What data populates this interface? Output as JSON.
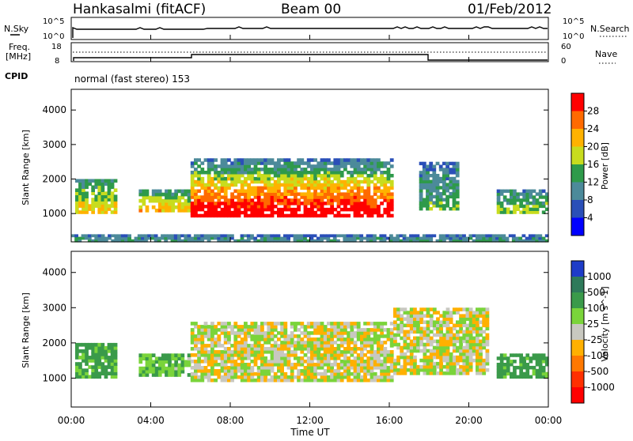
{
  "header": {
    "site": "Hankasalmi (fitACF)",
    "beam": "Beam 00",
    "date": "01/Feb/2012"
  },
  "noise_panel": {
    "left_label": "N.Sky",
    "right_label": "N.Search",
    "left_ticks": [
      "10^5",
      "10^0"
    ],
    "right_ticks": [
      "10^5",
      "10^0"
    ]
  },
  "freq_panel": {
    "left_label_1": "Freq.",
    "left_label_2": "[MHz]",
    "right_label": "Nave",
    "left_ticks": [
      "18",
      "8"
    ],
    "right_ticks": [
      "60",
      "0"
    ]
  },
  "cpid": {
    "label": "CPID",
    "text": "normal (fast stereo) 153"
  },
  "chart_data": [
    {
      "type": "heatmap",
      "title": "",
      "ylabel": "Slant Range [km]",
      "xlabel": "Time UT",
      "xlim": [
        "00:00",
        "24:00"
      ],
      "ylim": [
        180,
        4600
      ],
      "x_ticks": [
        "00:00",
        "04:00",
        "08:00",
        "12:00",
        "16:00",
        "20:00",
        "00:00"
      ],
      "y_ticks": [
        1000,
        2000,
        3000,
        4000
      ],
      "colorbar": {
        "label": "Power [dB]",
        "ticks": [
          "28",
          "24",
          "20",
          "16",
          "12",
          "8",
          "4"
        ],
        "colors": [
          "#ff0000",
          "#ff6a00",
          "#ffb200",
          "#c8dc1e",
          "#2e9a4a",
          "#4c8a9a",
          "#2a4fb8",
          "#0000ff"
        ]
      },
      "echo_regions": [
        {
          "t_start": 0.2,
          "t_end": 2.3,
          "r_min": 1000,
          "r_max": 2000,
          "level_db": 14
        },
        {
          "t_start": 3.4,
          "t_end": 6.0,
          "r_min": 1050,
          "r_max": 1700,
          "level_db": 15
        },
        {
          "t_start": 6.0,
          "t_end": 16.2,
          "r_min": 900,
          "r_max": 2150,
          "level_db": 25
        },
        {
          "t_start": 6.0,
          "t_end": 16.2,
          "r_min": 2150,
          "r_max": 2600,
          "level_db": 8
        },
        {
          "t_start": 17.5,
          "t_end": 19.5,
          "r_min": 1100,
          "r_max": 2500,
          "level_db": 9
        },
        {
          "t_start": 21.4,
          "t_end": 24.0,
          "r_min": 1000,
          "r_max": 1700,
          "level_db": 11
        },
        {
          "t_start": 0.0,
          "t_end": 24.0,
          "r_min": 180,
          "r_max": 400,
          "level_db": 6
        }
      ]
    },
    {
      "type": "heatmap",
      "title": "",
      "ylabel": "Slant Range [km]",
      "xlabel": "Time UT",
      "xlim": [
        "00:00",
        "24:00"
      ],
      "ylim": [
        180,
        4600
      ],
      "x_ticks": [
        "00:00",
        "04:00",
        "08:00",
        "12:00",
        "16:00",
        "20:00",
        "00:00"
      ],
      "y_ticks": [
        1000,
        2000,
        3000,
        4000
      ],
      "colorbar": {
        "label": "Velocity [m s^-1]",
        "ticks": [
          "1000",
          "500",
          "100",
          "25",
          "-25",
          "-100",
          "-500",
          "-1000"
        ],
        "colors": [
          "#1e3cc8",
          "#2e7a5a",
          "#3a9a4a",
          "#7ad43a",
          "#c8c8c0",
          "#ffb000",
          "#ff7800",
          "#ff3000",
          "#ff0000"
        ]
      },
      "echo_regions": [
        {
          "t_start": 0.2,
          "t_end": 2.3,
          "r_min": 1000,
          "r_max": 2000,
          "velocity": 150
        },
        {
          "t_start": 3.4,
          "t_end": 6.0,
          "r_min": 1050,
          "r_max": 1700,
          "velocity": 100
        },
        {
          "t_start": 6.0,
          "t_end": 16.2,
          "r_min": 900,
          "r_max": 2600,
          "velocity": 0
        },
        {
          "t_start": 16.2,
          "t_end": 21.0,
          "r_min": 1100,
          "r_max": 3000,
          "velocity": 0
        },
        {
          "t_start": 21.4,
          "t_end": 24.0,
          "r_min": 1000,
          "r_max": 1700,
          "velocity": 150
        }
      ]
    }
  ]
}
